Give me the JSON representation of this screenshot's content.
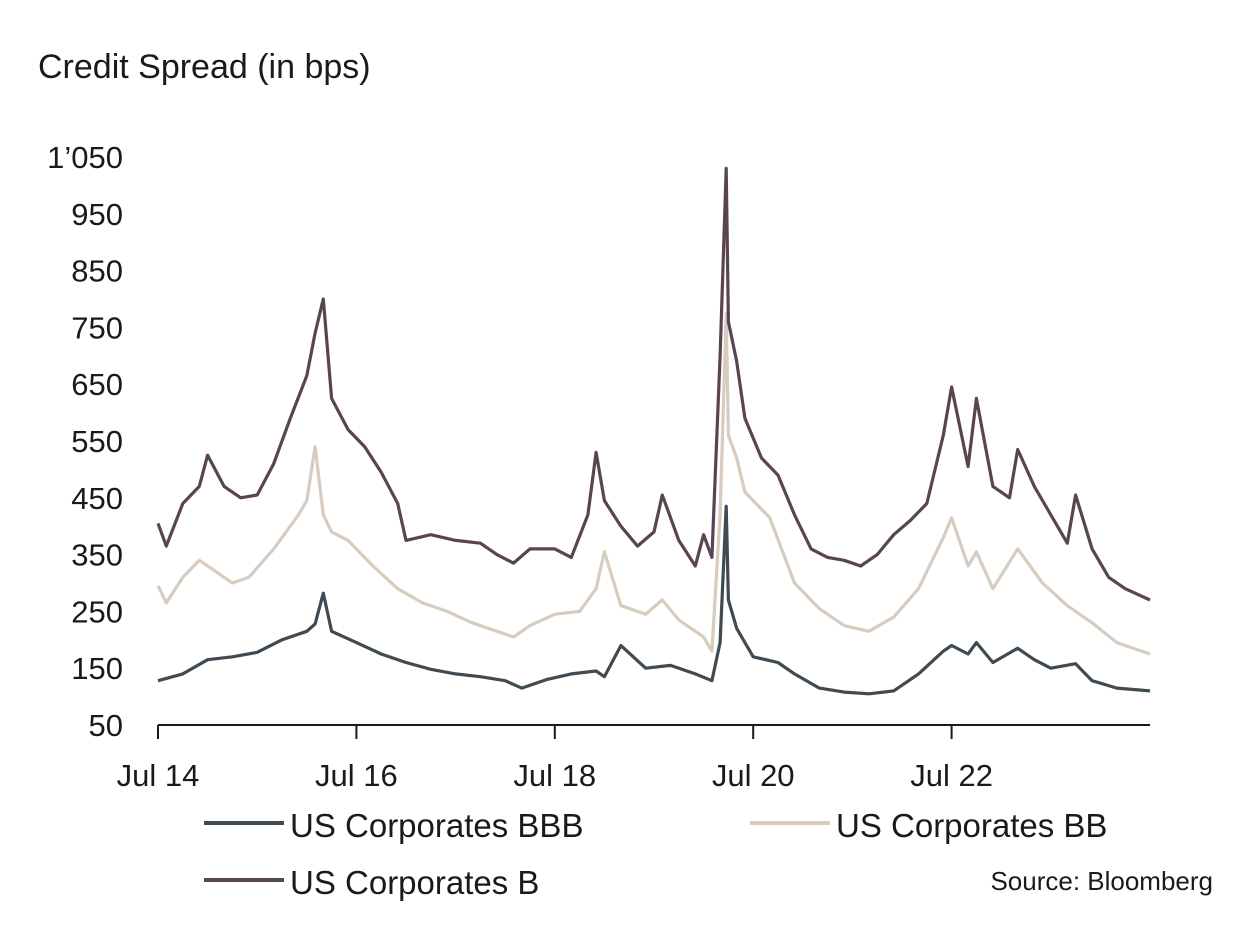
{
  "chart_data": {
    "type": "line",
    "title": "Credit Spread (in bps)",
    "xlabel": "",
    "ylabel": "",
    "ylim": [
      50,
      1050
    ],
    "yticks": [
      50,
      150,
      250,
      350,
      450,
      550,
      650,
      750,
      850,
      950,
      1050
    ],
    "ytick_labels": [
      "50",
      "150",
      "250",
      "350",
      "450",
      "550",
      "650",
      "750",
      "850",
      "950",
      "1’050"
    ],
    "xlim": [
      "2014-07",
      "2024-07"
    ],
    "xticks": [
      "2014-07",
      "2016-07",
      "2018-07",
      "2020-07",
      "2022-07"
    ],
    "xtick_labels": [
      "Jul 14",
      "Jul 16",
      "Jul 18",
      "Jul 20",
      "Jul 22"
    ],
    "grid": false,
    "legend": "bottom",
    "source": "Source: Bloomberg",
    "series": [
      {
        "name": "US Corporates BBB",
        "color": "#3f4a52",
        "points": [
          [
            "2014-07",
            128
          ],
          [
            "2014-10",
            140
          ],
          [
            "2015-01",
            165
          ],
          [
            "2015-04",
            170
          ],
          [
            "2015-07",
            178
          ],
          [
            "2015-10",
            200
          ],
          [
            "2016-01",
            215
          ],
          [
            "2016-02",
            228
          ],
          [
            "2016-03",
            282
          ],
          [
            "2016-04",
            215
          ],
          [
            "2016-07",
            195
          ],
          [
            "2016-10",
            175
          ],
          [
            "2017-01",
            160
          ],
          [
            "2017-04",
            148
          ],
          [
            "2017-07",
            140
          ],
          [
            "2017-10",
            135
          ],
          [
            "2018-01",
            128
          ],
          [
            "2018-03",
            115
          ],
          [
            "2018-06",
            130
          ],
          [
            "2018-09",
            140
          ],
          [
            "2018-12",
            145
          ],
          [
            "2019-01",
            135
          ],
          [
            "2019-03",
            190
          ],
          [
            "2019-06",
            150
          ],
          [
            "2019-09",
            155
          ],
          [
            "2019-12",
            140
          ],
          [
            "2020-02",
            128
          ],
          [
            "2020-03",
            195
          ],
          [
            "2020-03-23",
            435
          ],
          [
            "2020-04",
            270
          ],
          [
            "2020-05",
            220
          ],
          [
            "2020-07",
            170
          ],
          [
            "2020-10",
            160
          ],
          [
            "2020-12",
            140
          ],
          [
            "2021-03",
            115
          ],
          [
            "2021-06",
            108
          ],
          [
            "2021-09",
            105
          ],
          [
            "2021-12",
            110
          ],
          [
            "2022-03",
            140
          ],
          [
            "2022-06",
            180
          ],
          [
            "2022-07",
            190
          ],
          [
            "2022-09",
            175
          ],
          [
            "2022-10",
            195
          ],
          [
            "2022-12",
            160
          ],
          [
            "2023-03",
            185
          ],
          [
            "2023-05",
            165
          ],
          [
            "2023-07",
            150
          ],
          [
            "2023-10",
            158
          ],
          [
            "2023-12",
            128
          ],
          [
            "2024-03",
            115
          ],
          [
            "2024-07",
            110
          ]
        ]
      },
      {
        "name": "US Corporates BB",
        "color": "#d7ccbf",
        "points": [
          [
            "2014-07",
            295
          ],
          [
            "2014-08",
            265
          ],
          [
            "2014-10",
            310
          ],
          [
            "2014-12",
            340
          ],
          [
            "2015-02",
            320
          ],
          [
            "2015-04",
            300
          ],
          [
            "2015-06",
            310
          ],
          [
            "2015-09",
            360
          ],
          [
            "2015-12",
            420
          ],
          [
            "2016-01",
            445
          ],
          [
            "2016-02",
            540
          ],
          [
            "2016-03",
            420
          ],
          [
            "2016-04",
            390
          ],
          [
            "2016-06",
            375
          ],
          [
            "2016-09",
            330
          ],
          [
            "2016-12",
            290
          ],
          [
            "2017-03",
            265
          ],
          [
            "2017-06",
            250
          ],
          [
            "2017-09",
            230
          ],
          [
            "2017-12",
            215
          ],
          [
            "2018-02",
            205
          ],
          [
            "2018-04",
            225
          ],
          [
            "2018-07",
            245
          ],
          [
            "2018-10",
            250
          ],
          [
            "2018-12",
            290
          ],
          [
            "2019-01",
            355
          ],
          [
            "2019-03",
            260
          ],
          [
            "2019-06",
            245
          ],
          [
            "2019-08",
            270
          ],
          [
            "2019-10",
            235
          ],
          [
            "2020-01",
            205
          ],
          [
            "2020-02",
            180
          ],
          [
            "2020-03",
            420
          ],
          [
            "2020-03-23",
            775
          ],
          [
            "2020-04",
            560
          ],
          [
            "2020-05",
            520
          ],
          [
            "2020-06",
            460
          ],
          [
            "2020-09",
            415
          ],
          [
            "2020-12",
            300
          ],
          [
            "2021-03",
            255
          ],
          [
            "2021-06",
            225
          ],
          [
            "2021-09",
            215
          ],
          [
            "2021-12",
            240
          ],
          [
            "2022-03",
            290
          ],
          [
            "2022-06",
            380
          ],
          [
            "2022-07",
            415
          ],
          [
            "2022-09",
            330
          ],
          [
            "2022-10",
            355
          ],
          [
            "2022-12",
            290
          ],
          [
            "2023-03",
            360
          ],
          [
            "2023-06",
            300
          ],
          [
            "2023-09",
            260
          ],
          [
            "2023-12",
            230
          ],
          [
            "2024-03",
            195
          ],
          [
            "2024-07",
            175
          ]
        ]
      },
      {
        "name": "US Corporates B",
        "color": "#5a4452",
        "points": [
          [
            "2014-07",
            405
          ],
          [
            "2014-08",
            365
          ],
          [
            "2014-10",
            440
          ],
          [
            "2014-12",
            470
          ],
          [
            "2015-01",
            525
          ],
          [
            "2015-03",
            470
          ],
          [
            "2015-05",
            450
          ],
          [
            "2015-07",
            455
          ],
          [
            "2015-09",
            510
          ],
          [
            "2015-11",
            590
          ],
          [
            "2016-01",
            665
          ],
          [
            "2016-02",
            740
          ],
          [
            "2016-03",
            800
          ],
          [
            "2016-04",
            625
          ],
          [
            "2016-06",
            570
          ],
          [
            "2016-08",
            540
          ],
          [
            "2016-10",
            495
          ],
          [
            "2016-12",
            440
          ],
          [
            "2017-01",
            375
          ],
          [
            "2017-04",
            385
          ],
          [
            "2017-07",
            375
          ],
          [
            "2017-10",
            370
          ],
          [
            "2017-12",
            350
          ],
          [
            "2018-02",
            335
          ],
          [
            "2018-04",
            360
          ],
          [
            "2018-07",
            360
          ],
          [
            "2018-09",
            345
          ],
          [
            "2018-11",
            420
          ],
          [
            "2018-12",
            530
          ],
          [
            "2019-01",
            445
          ],
          [
            "2019-03",
            400
          ],
          [
            "2019-05",
            365
          ],
          [
            "2019-07",
            390
          ],
          [
            "2019-08",
            455
          ],
          [
            "2019-10",
            375
          ],
          [
            "2019-12",
            330
          ],
          [
            "2020-01",
            385
          ],
          [
            "2020-02",
            345
          ],
          [
            "2020-03",
            700
          ],
          [
            "2020-03-23",
            1030
          ],
          [
            "2020-04",
            760
          ],
          [
            "2020-05",
            690
          ],
          [
            "2020-06",
            590
          ],
          [
            "2020-08",
            520
          ],
          [
            "2020-10",
            490
          ],
          [
            "2020-12",
            420
          ],
          [
            "2021-02",
            360
          ],
          [
            "2021-04",
            345
          ],
          [
            "2021-06",
            340
          ],
          [
            "2021-08",
            330
          ],
          [
            "2021-10",
            350
          ],
          [
            "2021-12",
            385
          ],
          [
            "2022-02",
            410
          ],
          [
            "2022-04",
            440
          ],
          [
            "2022-06",
            560
          ],
          [
            "2022-07",
            645
          ],
          [
            "2022-09",
            505
          ],
          [
            "2022-10",
            625
          ],
          [
            "2022-12",
            470
          ],
          [
            "2023-02",
            450
          ],
          [
            "2023-03",
            535
          ],
          [
            "2023-05",
            470
          ],
          [
            "2023-07",
            420
          ],
          [
            "2023-09",
            370
          ],
          [
            "2023-10",
            455
          ],
          [
            "2023-12",
            360
          ],
          [
            "2024-02",
            310
          ],
          [
            "2024-04",
            290
          ],
          [
            "2024-07",
            270
          ]
        ]
      }
    ]
  }
}
